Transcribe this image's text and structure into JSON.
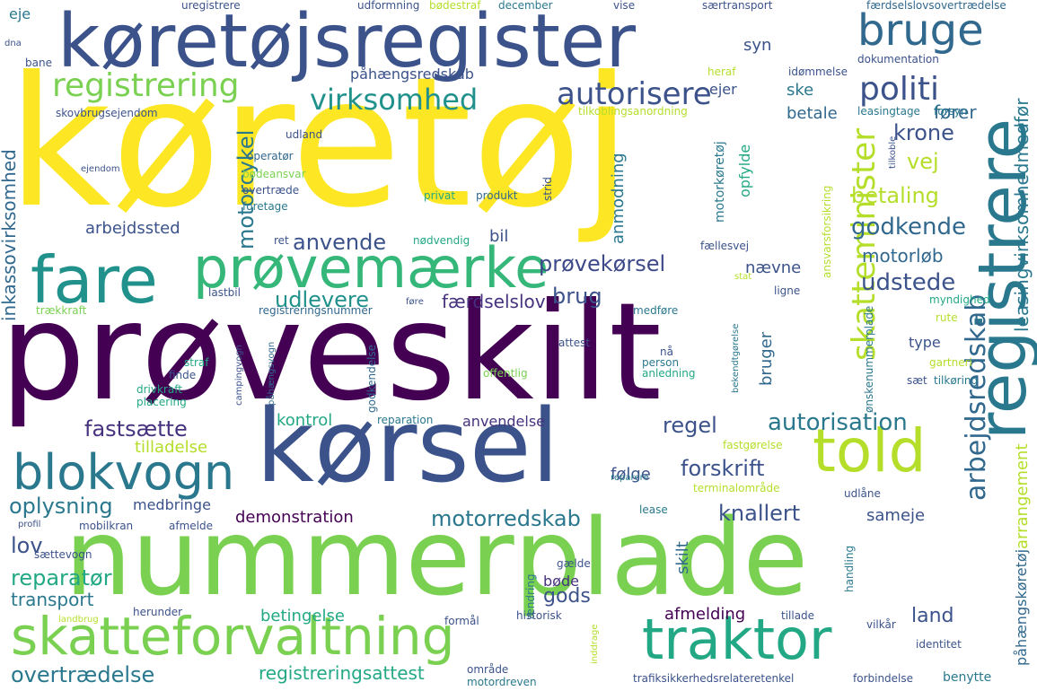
{
  "palette": {
    "yellow": "#fde725",
    "lightgreen": "#7ad151",
    "green": "#22a884",
    "teal": "#2a788e",
    "blue": "#414487",
    "purple": "#440154",
    "mediumgreen": "#35b779",
    "darkteal": "#21918c"
  },
  "words": [
    {
      "text": "køretøj",
      "color": "#fde725"
    },
    {
      "text": "prøveskilt",
      "color": "#440154"
    },
    {
      "text": "nummerplade",
      "color": "#7ad151"
    },
    {
      "text": "køretøjsregister",
      "color": "#3b528b"
    },
    {
      "text": "kørsel",
      "color": "#3b528b"
    },
    {
      "text": "registrere",
      "color": "#2a788e"
    },
    {
      "text": "prøvemærke",
      "color": "#35b779"
    },
    {
      "text": "fare",
      "color": "#21918c"
    },
    {
      "text": "skatteforvaltning",
      "color": "#7ad151"
    },
    {
      "text": "traktor",
      "color": "#22a884"
    },
    {
      "text": "blokvogn",
      "color": "#2a788e"
    },
    {
      "text": "told",
      "color": "#b5de2b"
    },
    {
      "text": "bruge",
      "color": "#31688e"
    },
    {
      "text": "registrering",
      "color": "#7ad151"
    },
    {
      "text": "autorisere",
      "color": "#3b528b"
    },
    {
      "text": "virksomhed",
      "color": "#21918c"
    },
    {
      "text": "politi",
      "color": "#3b528b"
    },
    {
      "text": "skatteminister",
      "color": "#b5de2b"
    },
    {
      "text": "arbejdsredskab",
      "color": "#31688e"
    },
    {
      "text": "leasingvirksomhedmedfør",
      "color": "#2a788e"
    },
    {
      "text": "inkassovirksomhed",
      "color": "#31688e"
    },
    {
      "text": "motorcykel",
      "color": "#2a788e"
    },
    {
      "text": "anvende",
      "color": "#3b528b"
    },
    {
      "text": "prøvekørsel",
      "color": "#3e4989"
    },
    {
      "text": "udlevere",
      "color": "#21918c"
    },
    {
      "text": "udstede",
      "color": "#3b528b"
    },
    {
      "text": "godkende",
      "color": "#31688e"
    },
    {
      "text": "betaling",
      "color": "#b5de2b"
    },
    {
      "text": "vej",
      "color": "#b5de2b"
    },
    {
      "text": "krone",
      "color": "#3b528b"
    },
    {
      "text": "fører",
      "color": "#31688e"
    },
    {
      "text": "autorisation",
      "color": "#2a788e"
    },
    {
      "text": "regel",
      "color": "#3b528b"
    },
    {
      "text": "fastsætte",
      "color": "#46327e"
    },
    {
      "text": "forskrift",
      "color": "#3b528b"
    },
    {
      "text": "oplysning",
      "color": "#2a788e"
    },
    {
      "text": "motorredskab",
      "color": "#2a788e"
    },
    {
      "text": "knallert",
      "color": "#3b528b"
    },
    {
      "text": "arrangement",
      "color": "#b5de2b"
    },
    {
      "text": "påhængskøretøj",
      "color": "#31688e"
    },
    {
      "text": "demonstration",
      "color": "#440154"
    },
    {
      "text": "sameje",
      "color": "#3b528b"
    },
    {
      "text": "lov",
      "color": "#3b528b"
    },
    {
      "text": "reparatør",
      "color": "#22a884"
    },
    {
      "text": "transport",
      "color": "#2a788e"
    },
    {
      "text": "overtrædelse",
      "color": "#2a788e"
    },
    {
      "text": "registreringsattest",
      "color": "#22a884"
    },
    {
      "text": "afmelding",
      "color": "#440154"
    },
    {
      "text": "land",
      "color": "#3b528b"
    },
    {
      "text": "betingelse",
      "color": "#22a884"
    },
    {
      "text": "gods",
      "color": "#3b528b"
    },
    {
      "text": "brug",
      "color": "#3b528b"
    },
    {
      "text": "færdselslov",
      "color": "#46327e"
    },
    {
      "text": "bruger",
      "color": "#31688e"
    },
    {
      "text": "skilt",
      "color": "#31688e"
    },
    {
      "text": "kontrol",
      "color": "#22a884"
    },
    {
      "text": "anvendelse",
      "color": "#46327e"
    },
    {
      "text": "tilladelse",
      "color": "#b5de2b"
    },
    {
      "text": "påhængsredskab",
      "color": "#3b528b"
    },
    {
      "text": "anmodning",
      "color": "#2a788e"
    },
    {
      "text": "motorløb",
      "color": "#31688e"
    },
    {
      "text": "bil",
      "color": "#3b528b"
    },
    {
      "text": "arbejdssted",
      "color": "#3b528b"
    },
    {
      "text": "registreringsnummer",
      "color": "#31688e"
    },
    {
      "text": "følge",
      "color": "#3b528b"
    },
    {
      "text": "bøde",
      "color": "#46327e"
    },
    {
      "text": "medbringe",
      "color": "#3b528b"
    },
    {
      "text": "eje",
      "color": "#2a788e"
    },
    {
      "text": "syn",
      "color": "#3b528b"
    },
    {
      "text": "betale",
      "color": "#31688e"
    },
    {
      "text": "ske",
      "color": "#2a788e"
    },
    {
      "text": "ejer",
      "color": "#3b528b"
    },
    {
      "text": "motorkøretøj",
      "color": "#2a788e"
    },
    {
      "text": "opfylde",
      "color": "#22a884"
    },
    {
      "text": "type",
      "color": "#3b528b"
    },
    {
      "text": "udformning",
      "color": "#3b528b"
    },
    {
      "text": "bødestraf",
      "color": "#b5de2b"
    },
    {
      "text": "december",
      "color": "#2a788e"
    },
    {
      "text": "vise",
      "color": "#3b528b"
    },
    {
      "text": "særtransport",
      "color": "#3b528b"
    },
    {
      "text": "færdselslovsovertrædelse",
      "color": "#31688e"
    },
    {
      "text": "uregistrere",
      "color": "#3b528b"
    },
    {
      "text": "dokumentation",
      "color": "#3b528b"
    },
    {
      "text": "leasingtage",
      "color": "#2a788e"
    },
    {
      "text": "tilkoblingsanordning",
      "color": "#b5de2b"
    },
    {
      "text": "forsyn",
      "color": "#2a788e"
    },
    {
      "text": "idømmelse",
      "color": "#3b528b"
    },
    {
      "text": "heraf",
      "color": "#b5de2b"
    },
    {
      "text": "skovbrugsejendom",
      "color": "#3b528b"
    },
    {
      "text": "udland",
      "color": "#3b528b"
    },
    {
      "text": "bane",
      "color": "#3b528b"
    },
    {
      "text": "operatør",
      "color": "#31688e"
    },
    {
      "text": "bødeansvar",
      "color": "#7ad151"
    },
    {
      "text": "overtræde",
      "color": "#3b528b"
    },
    {
      "text": "privat",
      "color": "#22a884"
    },
    {
      "text": "produkt",
      "color": "#31688e"
    },
    {
      "text": "strid",
      "color": "#3b528b"
    },
    {
      "text": "foretage",
      "color": "#2a788e"
    },
    {
      "text": "ejendom",
      "color": "#3b528b"
    },
    {
      "text": "nødvendig",
      "color": "#22a884"
    },
    {
      "text": "fællesvej",
      "color": "#3b528b"
    },
    {
      "text": "ansvarsforsikring",
      "color": "#b5de2b"
    },
    {
      "text": "ret",
      "color": "#3b528b"
    },
    {
      "text": "lastbil",
      "color": "#3b528b"
    },
    {
      "text": "trækkraft",
      "color": "#7ad151"
    },
    {
      "text": "førе",
      "color": "#3b528b"
    },
    {
      "text": "medføre",
      "color": "#2a788e"
    },
    {
      "text": "myndighed",
      "color": "#22a884"
    },
    {
      "text": "ligne",
      "color": "#3b528b"
    },
    {
      "text": "nævne",
      "color": "#3b528b"
    },
    {
      "text": "stat",
      "color": "#b5de2b"
    },
    {
      "text": "rute",
      "color": "#b5de2b"
    },
    {
      "text": "ønskenummerplade",
      "color": "#2a788e"
    },
    {
      "text": "attest",
      "color": "#3b528b"
    },
    {
      "text": "nå",
      "color": "#3b528b"
    },
    {
      "text": "person",
      "color": "#2a788e"
    },
    {
      "text": "anledning",
      "color": "#22a884"
    },
    {
      "text": "bekendtgørelse",
      "color": "#2a788e"
    },
    {
      "text": "gartneri",
      "color": "#b5de2b"
    },
    {
      "text": "sæt",
      "color": "#3b528b"
    },
    {
      "text": "tilkøring",
      "color": "#2a788e"
    },
    {
      "text": "offentlig",
      "color": "#7ad151"
    },
    {
      "text": "straf",
      "color": "#22a884"
    },
    {
      "text": "drivkraft",
      "color": "#22a884"
    },
    {
      "text": "placering",
      "color": "#22a884"
    },
    {
      "text": "finde",
      "color": "#3b528b"
    },
    {
      "text": "campingvogn",
      "color": "#3b528b"
    },
    {
      "text": "påhængsvogn",
      "color": "#31688e"
    },
    {
      "text": "godkendelse",
      "color": "#31688e"
    },
    {
      "text": "reparation",
      "color": "#2a788e"
    },
    {
      "text": "fastgørelse",
      "color": "#b5de2b"
    },
    {
      "text": "terminalområde",
      "color": "#b5de2b"
    },
    {
      "text": "udlåne",
      "color": "#3b528b"
    },
    {
      "text": "reparere",
      "color": "#2a788e"
    },
    {
      "text": "lease",
      "color": "#2a788e"
    },
    {
      "text": "afmelde",
      "color": "#3b528b"
    },
    {
      "text": "mobilkran",
      "color": "#3b528b"
    },
    {
      "text": "profil",
      "color": "#3b528b"
    },
    {
      "text": "sættevogn",
      "color": "#3b528b"
    },
    {
      "text": "gælde",
      "color": "#3b528b"
    },
    {
      "text": "ændring",
      "color": "#2a788e"
    },
    {
      "text": "handling",
      "color": "#2a788e"
    },
    {
      "text": "landbrug",
      "color": "#b5de2b"
    },
    {
      "text": "herunder",
      "color": "#3b528b"
    },
    {
      "text": "formål",
      "color": "#3b528b"
    },
    {
      "text": "historisk",
      "color": "#3b528b"
    },
    {
      "text": "tillade",
      "color": "#3b528b"
    },
    {
      "text": "vilkår",
      "color": "#3b528b"
    },
    {
      "text": "identitet",
      "color": "#3b528b"
    },
    {
      "text": "benytte",
      "color": "#2a788e"
    },
    {
      "text": "forbindelse",
      "color": "#3b528b"
    },
    {
      "text": "område",
      "color": "#3b528b"
    },
    {
      "text": "inddrage",
      "color": "#b5de2b"
    },
    {
      "text": "motordreven",
      "color": "#2a788e"
    },
    {
      "text": "trafiksikkerhedsrelateretenkel",
      "color": "#3b528b"
    },
    {
      "text": "dna",
      "color": "#3b528b"
    },
    {
      "text": "tilkoble",
      "color": "#3b528b"
    }
  ]
}
